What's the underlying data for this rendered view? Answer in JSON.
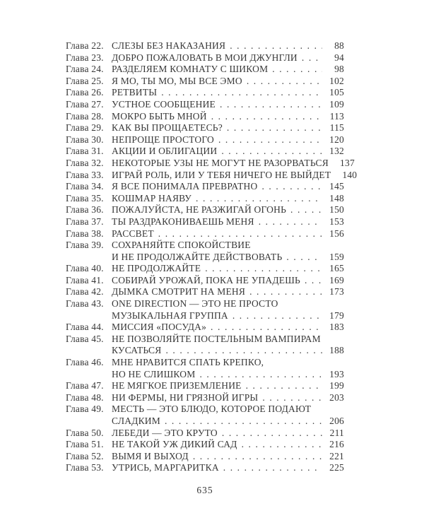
{
  "page": {
    "background": "#ffffff",
    "text_color": "#383838",
    "folio": "635"
  },
  "toc": {
    "entries": [
      {
        "label": "Глава 22.",
        "lines": [
          "СЛЕЗЫ БЕЗ НАКАЗАНИЯ"
        ],
        "page": "88"
      },
      {
        "label": "Глава 23.",
        "lines": [
          "ДОБРО ПОЖАЛОВАТЬ В МОИ ДЖУНГЛИ"
        ],
        "page": "94"
      },
      {
        "label": "Глава 24.",
        "lines": [
          "РАЗДЕЛЯЕМ КОМНАТУ С ШИКОМ"
        ],
        "page": "98"
      },
      {
        "label": "Глава 25.",
        "lines": [
          "Я МО, ТЫ МО, МЫ ВСЕ ЭМО"
        ],
        "page": "102"
      },
      {
        "label": "Глава 26.",
        "lines": [
          "РЕТВИТЫ"
        ],
        "page": "105"
      },
      {
        "label": "Глава 27.",
        "lines": [
          "УСТНОЕ СООБЩЕНИЕ"
        ],
        "page": "109"
      },
      {
        "label": "Глава 28.",
        "lines": [
          "МОКРО БЫТЬ МНОЙ"
        ],
        "page": "113"
      },
      {
        "label": "Глава 29.",
        "lines": [
          "КАК ВЫ ПРОЩАЕТЕСЬ?"
        ],
        "page": "115"
      },
      {
        "label": "Глава 30.",
        "lines": [
          "НЕПРОЩЕ ПРОСТОГО"
        ],
        "page": "120"
      },
      {
        "label": "Глава 31.",
        "lines": [
          "АКЦИИ И ОБЛИГАЦИИ"
        ],
        "page": "132"
      },
      {
        "label": "Глава 32.",
        "lines": [
          "НЕКОТОРЫЕ УЗЫ НЕ МОГУТ НЕ РАЗОРВАТЬСЯ"
        ],
        "page": "137"
      },
      {
        "label": "Глава 33.",
        "lines": [
          "ИГРАЙ РОЛЬ, ИЛИ У ТЕБЯ НИЧЕГО НЕ ВЫЙДЕТ"
        ],
        "page": "140"
      },
      {
        "label": "Глава 34.",
        "lines": [
          "Я ВСЕ ПОНИМАЛА ПРЕВРАТНО"
        ],
        "page": "145"
      },
      {
        "label": "Глава 35.",
        "lines": [
          "КОШМАР НАЯВУ"
        ],
        "page": "148"
      },
      {
        "label": "Глава 36.",
        "lines": [
          "ПОЖАЛУЙСТА, НЕ РАЗЖИГАЙ ОГОНЬ"
        ],
        "page": "150"
      },
      {
        "label": "Глава 37.",
        "lines": [
          "ТЫ РАЗДРАКОНИВАЕШЬ МЕНЯ"
        ],
        "page": "153"
      },
      {
        "label": "Глава 38.",
        "lines": [
          "РАССВЕТ"
        ],
        "page": "156"
      },
      {
        "label": "Глава 39.",
        "lines": [
          "СОХРАНЯЙТЕ СПОКОЙСТВИЕ",
          "И НЕ ПРОДОЛЖАЙТЕ ДЕЙСТВОВАТЬ"
        ],
        "page": "159"
      },
      {
        "label": "Глава 40.",
        "lines": [
          "НЕ ПРОДОЛЖАЙТЕ"
        ],
        "page": "165"
      },
      {
        "label": "Глава 41.",
        "lines": [
          "СОБИРАЙ УРОЖАЙ, ПОКА НЕ УПАДЕШЬ"
        ],
        "page": "169"
      },
      {
        "label": "Глава 42.",
        "lines": [
          "ДЫМКА СМОТРИТ НА МЕНЯ"
        ],
        "page": "173"
      },
      {
        "label": "Глава 43.",
        "lines": [
          "ONE DIRECTION — ЭТО НЕ ПРОСТО",
          "МУЗЫКАЛЬНАЯ ГРУППА"
        ],
        "page": "179"
      },
      {
        "label": "Глава 44.",
        "lines": [
          "МИССИЯ «ПОСУДА»"
        ],
        "page": "183"
      },
      {
        "label": "Глава 45.",
        "lines": [
          "НЕ ПОЗВОЛЯЙТЕ ПОСТЕЛЬНЫМ ВАМПИРАМ",
          "КУСАТЬСЯ"
        ],
        "page": "188"
      },
      {
        "label": "Глава 46.",
        "lines": [
          "МНЕ НРАВИТСЯ СПАТЬ КРЕПКО,",
          "НО НЕ СЛИШКОМ"
        ],
        "page": "193"
      },
      {
        "label": "Глава 47.",
        "lines": [
          "НЕ МЯГКОЕ ПРИЗЕМЛЕНИЕ"
        ],
        "page": "199"
      },
      {
        "label": "Глава 48.",
        "lines": [
          "НИ ФЕРМЫ, НИ ГРЯЗНОЙ ИГРЫ"
        ],
        "page": "203"
      },
      {
        "label": "Глава 49.",
        "lines": [
          "МЕСТЬ — ЭТО БЛЮДО, КОТОРОЕ ПОДАЮТ",
          "СЛАДКИМ"
        ],
        "page": "206"
      },
      {
        "label": "Глава 50.",
        "lines": [
          "ЛЕБЕДИ — ЭТО КРУТО"
        ],
        "page": "211"
      },
      {
        "label": "Глава 51.",
        "lines": [
          "НЕ ТАКОЙ УЖ ДИКИЙ САД"
        ],
        "page": "216"
      },
      {
        "label": "Глава 52.",
        "lines": [
          "ВЫМЯ И ВЫХОД"
        ],
        "page": "221"
      },
      {
        "label": "Глава 53.",
        "lines": [
          "УТРИСЬ, МАРГАРИТКА"
        ],
        "page": "225"
      }
    ]
  }
}
